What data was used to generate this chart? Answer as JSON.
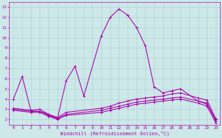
{
  "title": "",
  "xlabel": "Windchill (Refroidissement éolien,°C)",
  "ylabel": "",
  "xlim": [
    -0.5,
    23.5
  ],
  "ylim": [
    1.5,
    13.5
  ],
  "xticks": [
    0,
    1,
    2,
    3,
    4,
    5,
    6,
    7,
    8,
    9,
    10,
    11,
    12,
    13,
    14,
    15,
    16,
    17,
    18,
    19,
    20,
    21,
    22,
    23
  ],
  "yticks": [
    2,
    3,
    4,
    5,
    6,
    7,
    8,
    9,
    10,
    11,
    12,
    13
  ],
  "background_color": "#cce8e8",
  "line_color": "#aa00aa",
  "grid_color": "#aacccc",
  "lines": [
    {
      "x": [
        0,
        1,
        2,
        3,
        4,
        5,
        6,
        7,
        8,
        10,
        11,
        12,
        13,
        14,
        15,
        16,
        17,
        18,
        19,
        21,
        22,
        23
      ],
      "y": [
        4.0,
        6.2,
        2.8,
        2.8,
        2.5,
        2.1,
        5.8,
        7.2,
        4.3,
        10.2,
        12.0,
        12.8,
        12.2,
        11.0,
        9.2,
        5.2,
        4.6,
        4.8,
        5.0,
        3.8,
        3.5,
        2.0
      ]
    },
    {
      "x": [
        0,
        2,
        3,
        4,
        5,
        6,
        10,
        11,
        12,
        13,
        14,
        15,
        16,
        17,
        18,
        19,
        21,
        22,
        23
      ],
      "y": [
        3.1,
        2.9,
        3.0,
        2.5,
        2.2,
        2.7,
        3.1,
        3.3,
        3.6,
        3.8,
        4.0,
        4.1,
        4.2,
        4.3,
        4.5,
        4.6,
        4.1,
        3.9,
        2.1
      ]
    },
    {
      "x": [
        0,
        2,
        3,
        4,
        5,
        6,
        10,
        11,
        12,
        13,
        14,
        15,
        16,
        17,
        18,
        19,
        21,
        22,
        23
      ],
      "y": [
        3.0,
        2.8,
        2.8,
        2.4,
        2.1,
        2.5,
        2.9,
        3.1,
        3.3,
        3.5,
        3.7,
        3.8,
        3.9,
        4.0,
        4.1,
        4.2,
        3.8,
        3.6,
        1.9
      ]
    },
    {
      "x": [
        0,
        2,
        3,
        4,
        5,
        6,
        10,
        11,
        12,
        13,
        14,
        15,
        16,
        17,
        18,
        19,
        21,
        22,
        23
      ],
      "y": [
        2.9,
        2.7,
        2.7,
        2.3,
        2.0,
        2.4,
        2.7,
        2.9,
        3.1,
        3.3,
        3.5,
        3.6,
        3.7,
        3.8,
        3.9,
        4.0,
        3.6,
        3.3,
        1.7
      ]
    }
  ],
  "marker": "+",
  "markersize": 3,
  "linewidth": 0.8,
  "tick_fontsize": 4.5,
  "label_fontsize": 5.0,
  "font_family": "monospace"
}
